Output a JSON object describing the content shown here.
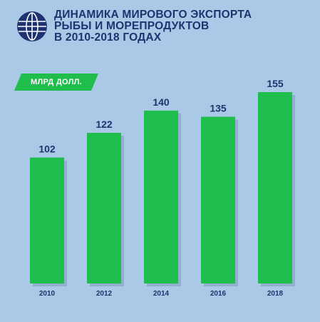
{
  "header": {
    "title_lines": [
      "ДИНАМИКА МИРОВОГО ЭКСПОРТА",
      "РЫБЫ И МОРЕПРОДУКТОВ",
      "В 2010-2018 ГОДАХ"
    ],
    "logo_icon": "globe-icon"
  },
  "unit_label": "МЛРД ДОЛЛ.",
  "colors": {
    "background": "#a9c9e6",
    "bar": "#1ebd4c",
    "bar_shadow": "#7d9bb8",
    "title": "#1f3370",
    "value_label": "#1f3370",
    "tick_label": "#1f3370",
    "tag": "#1ebd4c"
  },
  "chart_data": {
    "type": "bar",
    "categories": [
      "2010",
      "2012",
      "2014",
      "2016",
      "2018"
    ],
    "values": [
      102,
      122,
      140,
      135,
      155
    ],
    "value_labels": [
      "102",
      "122",
      "140",
      "135",
      "155"
    ],
    "title": "ДИНАМИКА МИРОВОГО ЭКСПОРТА РЫБЫ И МОРЕПРОДУКТОВ В 2010-2018 ГОДАХ",
    "ylabel": "МЛРД ДОЛЛ.",
    "ylim": [
      0,
      155
    ],
    "grid": false,
    "legend": "none"
  }
}
